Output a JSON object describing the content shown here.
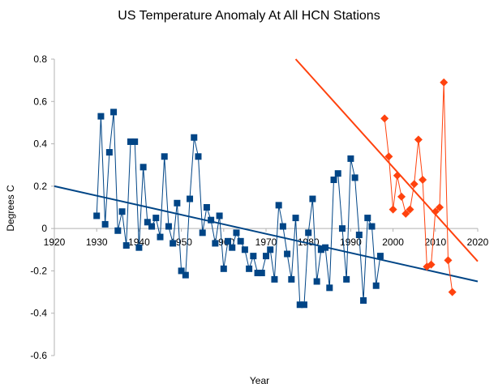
{
  "chart_data": {
    "type": "scatter",
    "title": "US Temperature Anomaly At All HCN Stations",
    "xlabel": "Year",
    "ylabel": "Degrees C",
    "xlim": [
      1920,
      2020
    ],
    "ylim": [
      -0.6,
      0.8
    ],
    "xticks": [
      "1920",
      "1930",
      "1940",
      "1950",
      "1960",
      "1970",
      "1980",
      "1990",
      "2000",
      "2010",
      "2020"
    ],
    "yticks": [
      "0.8",
      "0.6",
      "0.4",
      "0.2",
      "0",
      "-0.2",
      "-0.4",
      "-0.6"
    ],
    "grid": false,
    "legend": "none",
    "series": [
      {
        "color": "#004586",
        "marker": "square",
        "x": [
          1930,
          1931,
          1932,
          1933,
          1934,
          1935,
          1936,
          1937,
          1938,
          1939,
          1940,
          1941,
          1942,
          1943,
          1944,
          1945,
          1946,
          1947,
          1948,
          1949,
          1950,
          1951,
          1952,
          1953,
          1954,
          1955,
          1956,
          1957,
          1958,
          1959,
          1960,
          1961,
          1962,
          1963,
          1964,
          1965,
          1966,
          1967,
          1968,
          1969,
          1970,
          1971,
          1972,
          1973,
          1974,
          1975,
          1976,
          1977,
          1978,
          1979,
          1980,
          1981,
          1982,
          1983,
          1984,
          1985,
          1986,
          1987,
          1988,
          1989,
          1990,
          1991,
          1992,
          1993,
          1994,
          1995,
          1996,
          1997
        ],
        "y": [
          0.06,
          0.53,
          0.02,
          0.36,
          0.55,
          -0.01,
          0.08,
          -0.08,
          0.41,
          0.41,
          -0.09,
          0.29,
          0.03,
          0.01,
          0.05,
          -0.04,
          0.34,
          0.01,
          -0.07,
          0.12,
          -0.2,
          -0.22,
          0.14,
          0.43,
          0.34,
          -0.02,
          0.1,
          0.04,
          -0.07,
          0.06,
          -0.19,
          -0.06,
          -0.09,
          -0.02,
          -0.06,
          -0.1,
          -0.19,
          -0.13,
          -0.21,
          -0.21,
          -0.13,
          -0.1,
          -0.24,
          0.11,
          0.01,
          -0.12,
          -0.24,
          0.05,
          -0.36,
          -0.36,
          -0.02,
          0.14,
          -0.25,
          -0.1,
          -0.09,
          -0.28,
          0.23,
          0.26,
          0.0,
          -0.24,
          0.33,
          0.24,
          -0.03,
          -0.34,
          0.05,
          0.01,
          -0.27,
          -0.13
        ]
      },
      {
        "color": "#ff420e",
        "marker": "diamond",
        "x": [
          1998,
          1999,
          2000,
          2001,
          2002,
          2003,
          2004,
          2005,
          2006,
          2007,
          2008,
          2009,
          2010,
          2011,
          2012,
          2013,
          2014
        ],
        "y": [
          0.52,
          0.34,
          0.09,
          0.25,
          0.15,
          0.07,
          0.09,
          0.21,
          0.42,
          0.23,
          -0.18,
          -0.17,
          0.08,
          0.1,
          0.69,
          -0.15,
          -0.3
        ]
      }
    ],
    "trendlines": [
      {
        "color": "#004586",
        "from": [
          1920,
          0.2
        ],
        "to": [
          2020,
          -0.25
        ]
      },
      {
        "color": "#ff420e",
        "from": [
          1977,
          0.8
        ],
        "to": [
          2020,
          -0.155
        ]
      }
    ]
  }
}
